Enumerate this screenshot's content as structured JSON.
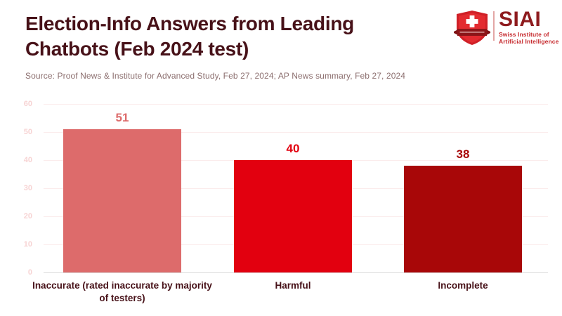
{
  "header": {
    "title": "Election-Info Answers from Leading Chatbots (Feb 2024 test)",
    "source": "Source: Proof News & Institute for Advanced Study, Feb 27, 2024; AP News summary, Feb 27, 2024"
  },
  "logo": {
    "name": "SIAI",
    "subtitle_line1": "Swiss Institute of",
    "subtitle_line2": "Artificial Intelligence",
    "icon": "swiss-shield-cross-icon",
    "brand_color": "#8e1b1e",
    "accent_color": "#c62a2e"
  },
  "chart_data": {
    "type": "bar",
    "title": "Election-Info Answers from Leading Chatbots (Feb 2024 test)",
    "categories": [
      "Inaccurate (rated inaccurate by majority of testers)",
      "Harmful",
      "Incomplete"
    ],
    "values": [
      51,
      40,
      38
    ],
    "bar_colors": [
      "#dd6b6b",
      "#e2000f",
      "#a80708"
    ],
    "value_label_colors": [
      "#dd6b6b",
      "#e2000f",
      "#a80708"
    ],
    "xlabel": "",
    "ylabel": "",
    "ylim": [
      0,
      60
    ],
    "yticks": [
      0,
      10,
      20,
      30,
      40,
      50,
      60
    ],
    "grid": true,
    "legend": false,
    "value_labels_shown": true,
    "gridline_color": "#fbecec",
    "baseline_color": "#d9d9d9",
    "tick_label_color": "#f7d3d3",
    "category_label_color": "#471118"
  }
}
